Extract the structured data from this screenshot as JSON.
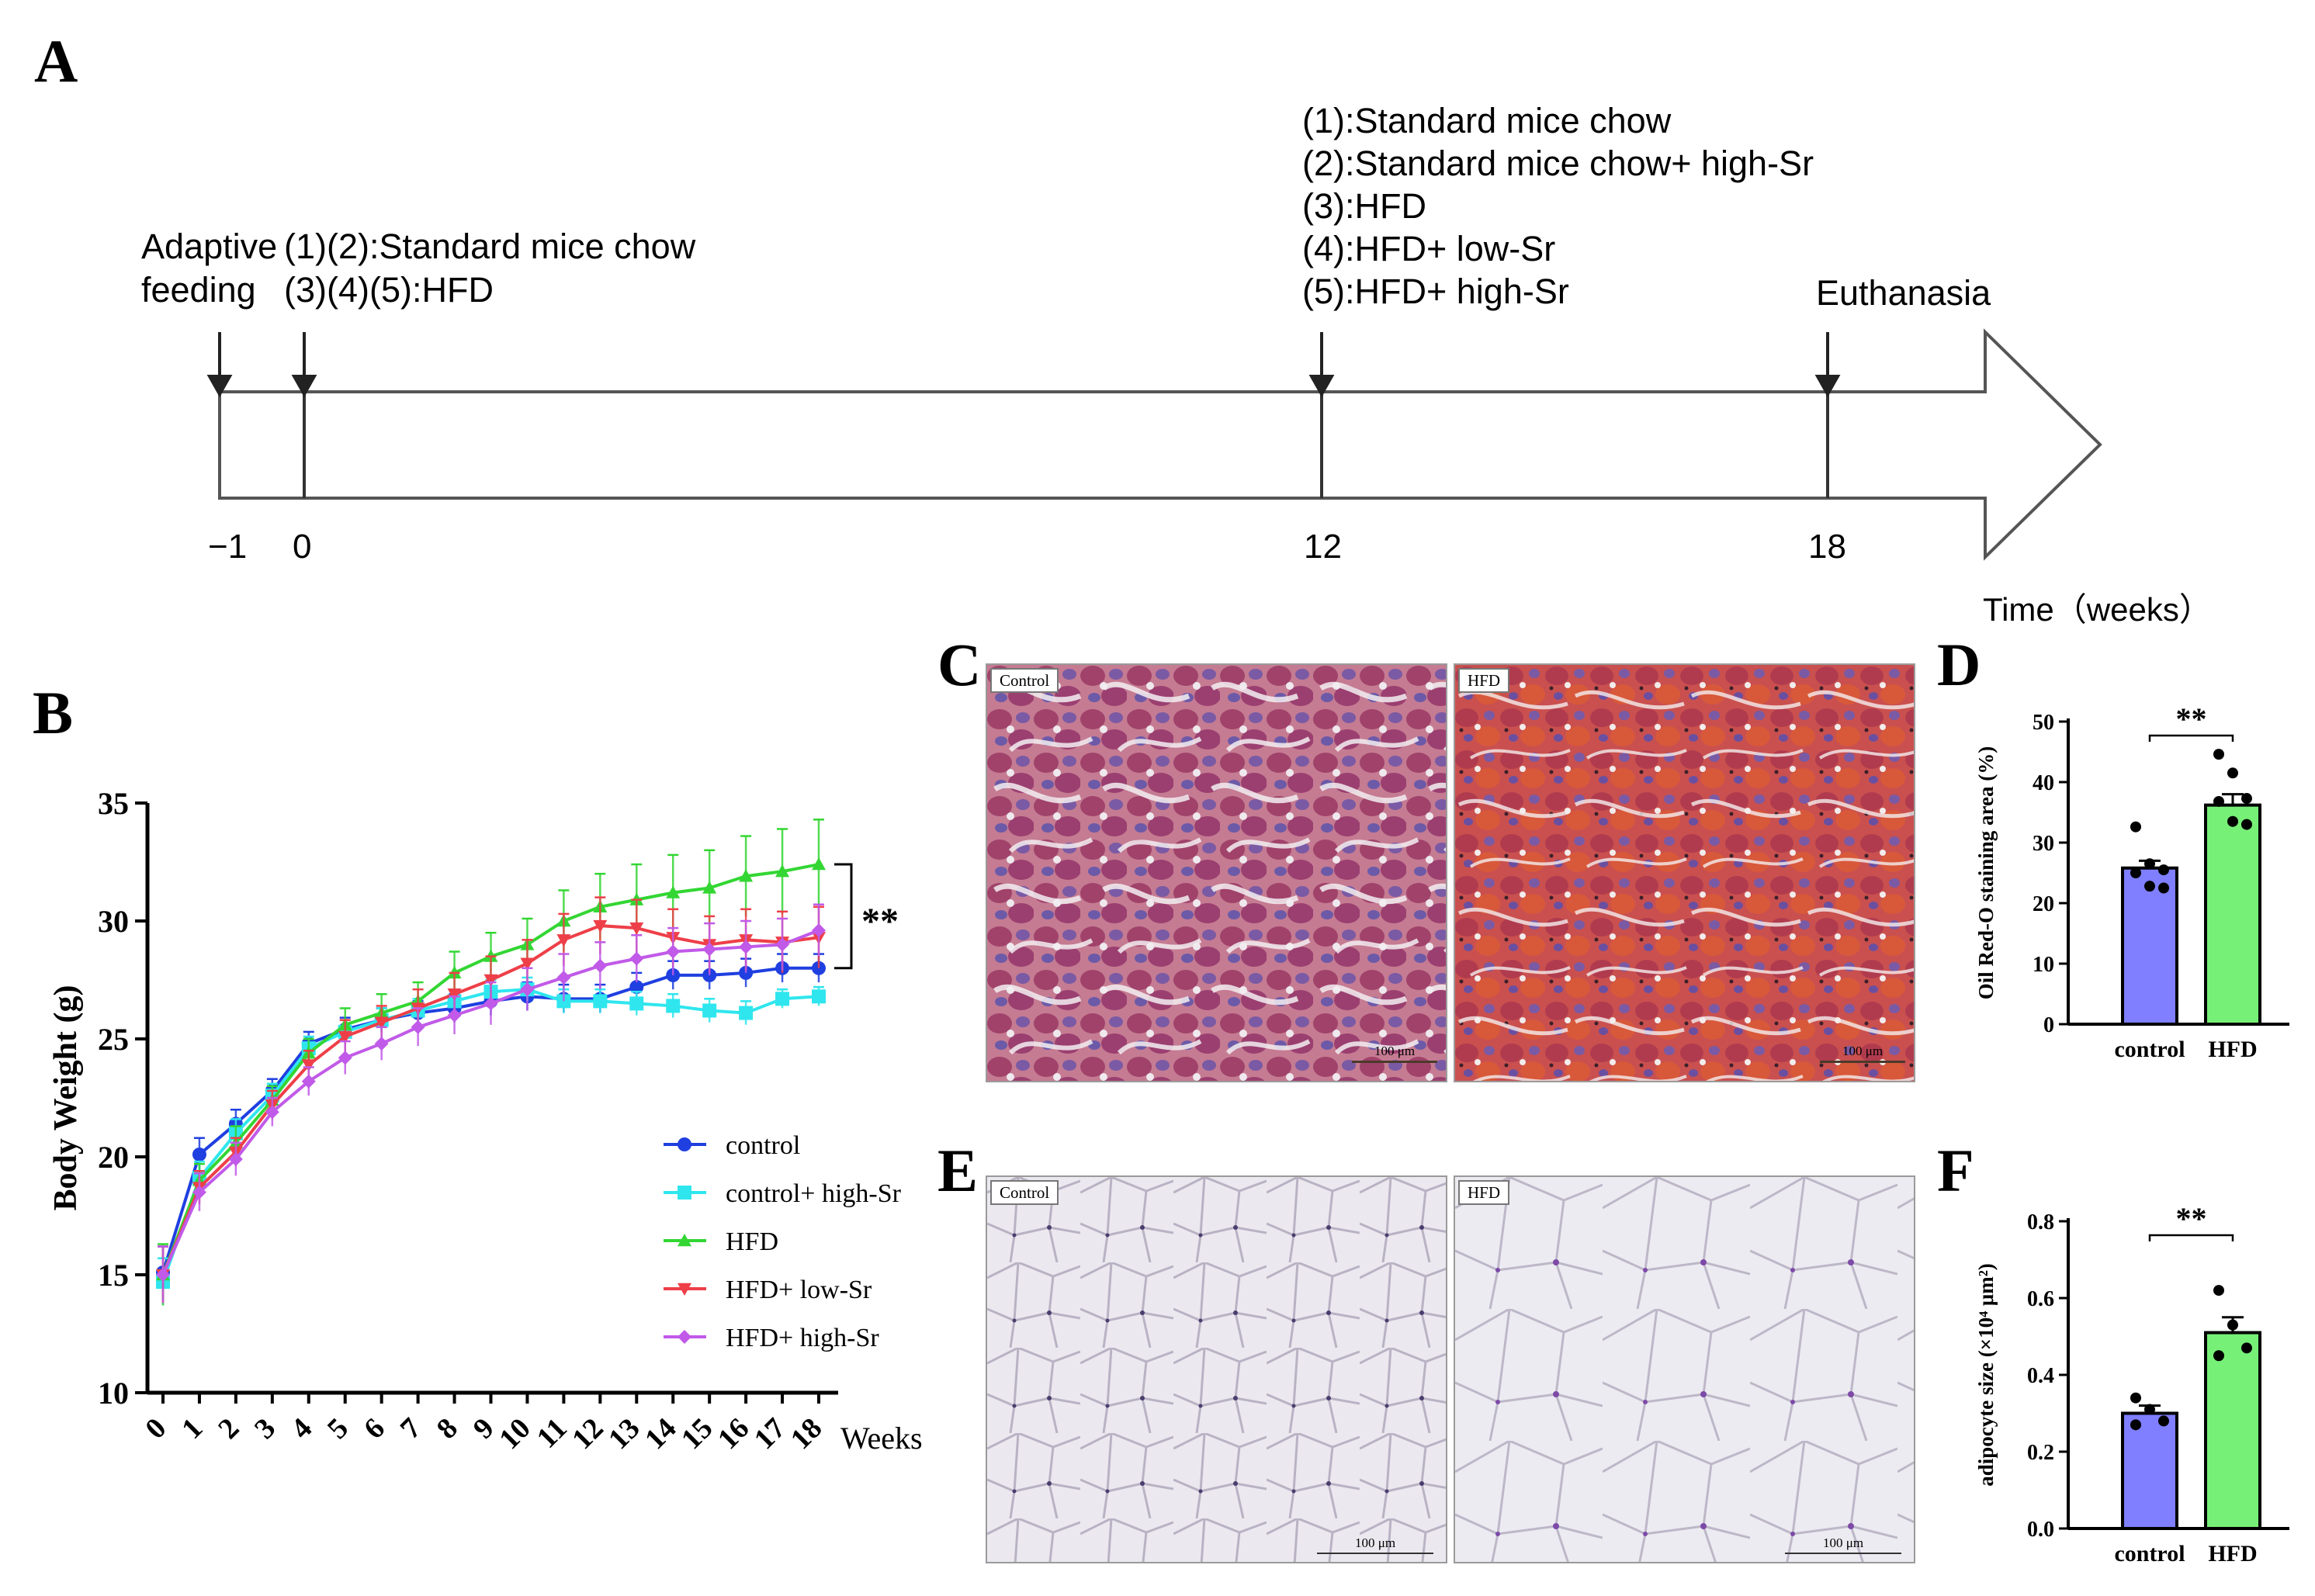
{
  "figure": {
    "panels": [
      "A",
      "B",
      "C",
      "D",
      "E",
      "F"
    ]
  },
  "timeline": {
    "events": [
      {
        "label_lines": [
          "Adaptive",
          "feeding"
        ]
      },
      {
        "label_lines": [
          "(1)(2):Standard mice chow",
          "(3)(4)(5):HFD"
        ]
      },
      {
        "label_lines": [
          "(1):Standard mice chow",
          "(2):Standard mice chow+ high-Sr",
          "(3):HFD",
          "(4):HFD+ low-Sr",
          "(5):HFD+ high-Sr"
        ]
      },
      {
        "label_lines": [
          "Euthanasia"
        ]
      }
    ],
    "tick_labels": [
      "−1",
      "0",
      "12",
      "18"
    ],
    "axis_label": "Time（weeks）"
  },
  "micrographs": {
    "C": {
      "left_label": "Control",
      "right_label": "HFD",
      "scale": "100 μm",
      "stain": "oil-red-o"
    },
    "E": {
      "left_label": "Control",
      "right_label": "HFD",
      "scale": "100 μm",
      "stain": "h-and-e"
    }
  },
  "chart_data": [
    {
      "panel": "B",
      "type": "line",
      "ylabel": "Body Weight (g)",
      "xlabel": "Weeks",
      "ylim": [
        10,
        35
      ],
      "yticks": [
        10,
        15,
        20,
        25,
        30,
        35
      ],
      "x": [
        0,
        1,
        2,
        3,
        4,
        5,
        6,
        7,
        8,
        9,
        10,
        11,
        12,
        13,
        14,
        15,
        16,
        17,
        18
      ],
      "significance": "**",
      "legend_position": "right",
      "series": [
        {
          "name": "control",
          "color": "#1f3fe0",
          "marker": "circle",
          "values": [
            15.1,
            20.1,
            21.4,
            22.8,
            24.8,
            25.4,
            25.8,
            26.1,
            26.3,
            26.6,
            26.8,
            26.7,
            26.7,
            27.2,
            27.7,
            27.7,
            27.8,
            28.0,
            28.0
          ],
          "errors": [
            1.1,
            0.7,
            0.6,
            0.5,
            0.5,
            0.5,
            0.5,
            0.5,
            0.6,
            0.6,
            0.6,
            0.6,
            0.6,
            0.6,
            0.6,
            0.6,
            0.6,
            0.6,
            0.6
          ]
        },
        {
          "name": "control+ high-Sr",
          "color": "#2fe6ee",
          "marker": "square",
          "values": [
            14.7,
            19.1,
            21.0,
            22.6,
            24.6,
            25.3,
            25.8,
            26.2,
            26.6,
            27.0,
            27.1,
            26.6,
            26.6,
            26.5,
            26.4,
            26.2,
            26.1,
            26.7,
            26.8
          ],
          "errors": [
            1.0,
            0.7,
            0.6,
            0.5,
            0.5,
            0.5,
            0.5,
            0.5,
            0.5,
            0.5,
            0.5,
            0.5,
            0.5,
            0.5,
            0.5,
            0.5,
            0.5,
            0.4,
            0.4
          ]
        },
        {
          "name": "HFD",
          "color": "#33d633",
          "marker": "triangle-up",
          "values": [
            15.0,
            19.0,
            20.6,
            22.4,
            24.4,
            25.6,
            26.1,
            26.6,
            27.8,
            28.5,
            29.0,
            30.0,
            30.6,
            30.9,
            31.2,
            31.4,
            31.9,
            32.1,
            32.4
          ],
          "errors": [
            1.3,
            0.7,
            0.7,
            0.6,
            0.6,
            0.7,
            0.8,
            0.8,
            0.9,
            1.0,
            1.1,
            1.3,
            1.4,
            1.5,
            1.6,
            1.6,
            1.7,
            1.8,
            1.9
          ]
        },
        {
          "name": "HFD+ low-Sr",
          "color": "#ee3f48",
          "marker": "triangle-down",
          "values": [
            15.0,
            18.7,
            20.2,
            22.2,
            23.9,
            25.1,
            25.7,
            26.3,
            26.9,
            27.5,
            28.2,
            29.2,
            29.8,
            29.7,
            29.3,
            29.0,
            29.2,
            29.1,
            29.3
          ],
          "errors": [
            1.2,
            0.7,
            0.6,
            0.6,
            0.6,
            0.7,
            0.7,
            0.8,
            0.9,
            1.0,
            1.0,
            1.1,
            1.2,
            1.2,
            1.2,
            1.2,
            1.3,
            1.3,
            1.3
          ]
        },
        {
          "name": "HFD+ high-Sr",
          "color": "#c15ae8",
          "marker": "diamond",
          "values": [
            15.0,
            18.5,
            19.9,
            21.9,
            23.2,
            24.2,
            24.8,
            25.5,
            26.0,
            26.5,
            27.1,
            27.6,
            28.1,
            28.4,
            28.7,
            28.8,
            28.9,
            29.0,
            29.6
          ],
          "errors": [
            1.2,
            0.8,
            0.7,
            0.6,
            0.6,
            0.7,
            0.7,
            0.8,
            0.8,
            0.9,
            0.9,
            1.0,
            1.0,
            1.0,
            1.0,
            1.1,
            1.1,
            1.1,
            1.1
          ]
        }
      ]
    },
    {
      "panel": "D",
      "type": "bar",
      "ylabel": "Oil Red-O staining area (%)",
      "categories": [
        "control",
        "HFD"
      ],
      "values": [
        25.8,
        36.2
      ],
      "errors": [
        1.2,
        1.8
      ],
      "points": [
        [
          32.6,
          26.5,
          25.5,
          25.0,
          22.8,
          22.5
        ],
        [
          44.6,
          41.5,
          37.3,
          36.8,
          33.5,
          33.0
        ]
      ],
      "colors": [
        "#7f7fff",
        "#77f077"
      ],
      "ylim": [
        0,
        50
      ],
      "yticks": [
        0,
        10,
        20,
        30,
        40,
        50
      ],
      "significance": "**"
    },
    {
      "panel": "F",
      "type": "bar",
      "ylabel": "adipocyte size (×10⁴ μm²)",
      "categories": [
        "control",
        "HFD"
      ],
      "values": [
        0.3,
        0.51
      ],
      "errors": [
        0.02,
        0.04
      ],
      "points": [
        [
          0.34,
          0.31,
          0.28,
          0.27
        ],
        [
          0.62,
          0.53,
          0.47,
          0.45
        ]
      ],
      "colors": [
        "#7f7fff",
        "#77f077"
      ],
      "ylim": [
        0,
        0.8
      ],
      "yticks": [
        0.0,
        0.2,
        0.4,
        0.6,
        0.8
      ],
      "significance": "**"
    }
  ]
}
